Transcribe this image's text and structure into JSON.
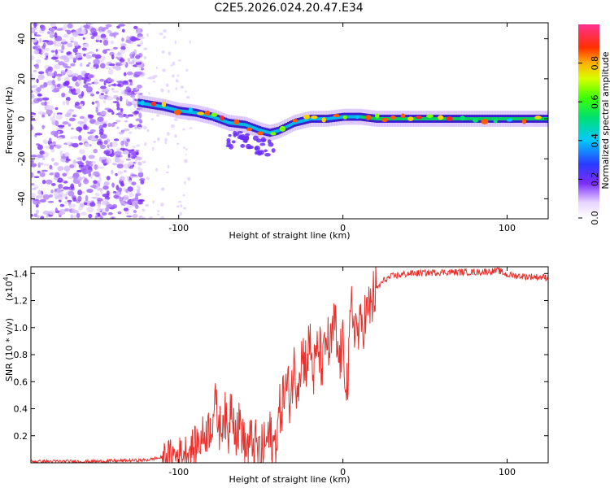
{
  "title": "C2E5.2026.024.20.47.E34",
  "chart_data": [
    {
      "type": "heatmap",
      "name": "spectrogram",
      "xlabel": "Height of straight line (km)",
      "ylabel": "Frequency (Hz)",
      "xlim": [
        -190,
        125
      ],
      "ylim": [
        -50,
        48
      ],
      "xticks": [
        -100,
        0,
        100
      ],
      "xtick_labels": [
        "-100",
        "0",
        "100"
      ],
      "yticks": [
        -40,
        -20,
        0,
        20,
        40
      ],
      "ytick_labels": [
        "-40",
        "-20",
        "0",
        "20",
        "40"
      ],
      "colorbar": {
        "label": "Normalized spectral amplitude",
        "range": [
          0,
          1
        ],
        "ticks": [
          0.0,
          0.2,
          0.4,
          0.6,
          0.8
        ],
        "tick_labels": [
          "0.0",
          "0.2",
          "0.4",
          "0.6",
          "0.8"
        ]
      },
      "ridge": {
        "x": [
          -125,
          -110,
          -100,
          -90,
          -80,
          -70,
          -60,
          -50,
          -45,
          -40,
          -35,
          -30,
          -20,
          -10,
          0,
          10,
          20,
          40,
          60,
          80,
          100,
          125
        ],
        "freq": [
          8,
          6,
          4,
          3,
          1,
          -2,
          -3,
          -6,
          -7,
          -6,
          -4,
          -2,
          0,
          0,
          1,
          1,
          0,
          0,
          0,
          0,
          0,
          0
        ]
      }
    },
    {
      "type": "line",
      "name": "snr",
      "xlabel": "Height of straight line (km)",
      "ylabel": "SNR (10 * v/v)",
      "scale_label": "(x10",
      "scale_exponent": "4",
      "xlim": [
        -190,
        125
      ],
      "ylim": [
        0,
        1.45
      ],
      "xticks": [
        -100,
        0,
        100
      ],
      "xtick_labels": [
        "-100",
        "0",
        "100"
      ],
      "yticks": [
        0.2,
        0.4,
        0.6,
        0.8,
        1.0,
        1.2,
        1.4
      ],
      "ytick_labels": [
        "0.2",
        "0.4",
        "0.6",
        "0.8",
        "1.0",
        "1.2",
        "1.4"
      ],
      "series": [
        {
          "name": "SNR",
          "color": "#e8312c",
          "x": [
            -190,
            -150,
            -120,
            -110,
            -100,
            -95,
            -90,
            -85,
            -80,
            -78,
            -75,
            -72,
            -70,
            -68,
            -65,
            -62,
            -60,
            -55,
            -50,
            -45,
            -42,
            -40,
            -38,
            -35,
            -32,
            -30,
            -28,
            -25,
            -22,
            -20,
            -18,
            -15,
            -12,
            -10,
            -8,
            -5,
            -3,
            0,
            3,
            5,
            8,
            10,
            12,
            15,
            18,
            20,
            25,
            30,
            40,
            60,
            80,
            95,
            100,
            110,
            125
          ],
          "y": [
            0.01,
            0.01,
            0.02,
            0.04,
            0.06,
            0.08,
            0.12,
            0.2,
            0.28,
            0.45,
            0.25,
            0.38,
            0.15,
            0.5,
            0.22,
            0.3,
            0.1,
            0.15,
            0.05,
            0.2,
            0.1,
            0.25,
            0.4,
            0.55,
            0.5,
            0.7,
            0.6,
            0.8,
            0.75,
            0.9,
            0.65,
            0.85,
            0.7,
            0.95,
            0.8,
            1.05,
            0.75,
            0.85,
            0.55,
            1.15,
            1.0,
            0.95,
            1.05,
            1.1,
            1.2,
            1.28,
            1.35,
            1.38,
            1.4,
            1.41,
            1.41,
            1.42,
            1.39,
            1.38,
            1.37
          ]
        }
      ]
    }
  ]
}
